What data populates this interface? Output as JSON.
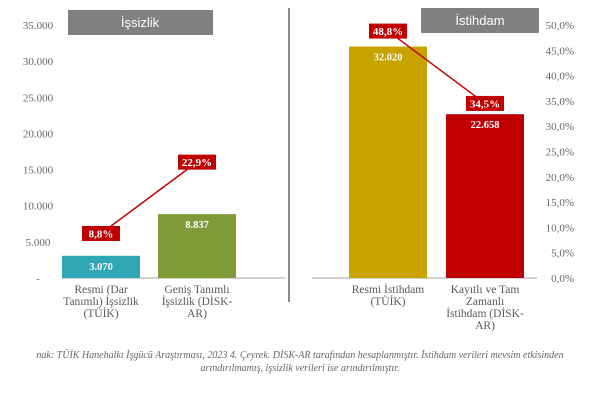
{
  "chart_data": {
    "type": "bar",
    "left_panel": {
      "header": "İşsizlik",
      "y_ticks": [
        "35.000",
        "30.000",
        "25.000",
        "20.000",
        "15.000",
        "10.000",
        "5.000",
        "-"
      ],
      "ylim": [
        0,
        35000
      ],
      "bars": [
        {
          "label": [
            "Resmi (Dar",
            "Tanımlı) İşsizlik",
            "(TÜİK)"
          ],
          "value": 3070,
          "value_label": "3.070",
          "color": "#2ea6b3"
        },
        {
          "label": [
            "Geniş Tanımlı",
            "İşsizlik (DİSK-",
            "AR)"
          ],
          "value": 8837,
          "value_label": "8.837",
          "color": "#7f9a38"
        }
      ],
      "rate_line": {
        "values": [
          8.8,
          22.9
        ],
        "labels": [
          "8,8%",
          "22,9%"
        ],
        "color": "#c00000"
      }
    },
    "right_panel": {
      "header": "İstihdam",
      "y_ticks": [
        "50,0%",
        "45,0%",
        "40,0%",
        "35,0%",
        "30,0%",
        "25,0%",
        "20,0%",
        "15,0%",
        "10,0%",
        "5,0%",
        "0,0%"
      ],
      "ylim_pct": [
        0,
        50
      ],
      "bars": [
        {
          "label": [
            "Resmi İstihdam",
            "(TÜİK)"
          ],
          "value": 32020,
          "value_label": "32.020",
          "color": "#c9a400"
        },
        {
          "label": [
            "Kayıtlı ve Tam",
            "Zamanlı",
            "İstihdam (DİSK-",
            "AR)"
          ],
          "value": 22658,
          "value_label": "22.658",
          "color": "#c00000"
        }
      ],
      "rate_line": {
        "values": [
          48.8,
          34.5
        ],
        "labels": [
          "48,8%",
          "34,5%"
        ],
        "color": "#c00000"
      }
    },
    "header_color": "#808080",
    "source_lines": [
      "nak: TÜİK Hanehalkı İşgücü Araştırması, 2023 4. Çeyrek. DİSK-AR tarafından hesaplanmıştır. İstihdam verileri mevsim etkisinden",
      "arındırılmamış, işsizlik verileri ise arındırılmıştır."
    ]
  }
}
